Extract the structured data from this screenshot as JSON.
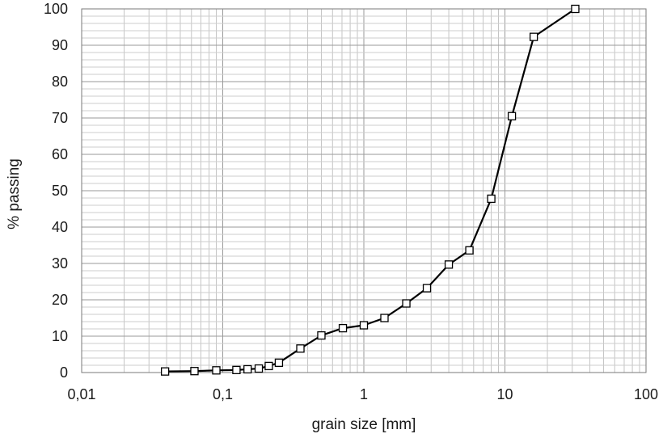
{
  "chart_data": {
    "type": "line",
    "title": "",
    "xlabel": "grain size [mm]",
    "ylabel": "% passing",
    "xscale": "log",
    "xlim": [
      0.01,
      100
    ],
    "ylim": [
      0,
      100
    ],
    "grid": true,
    "legend": "none",
    "x_tick_labels": [
      "0,01",
      "0,1",
      "1",
      "10",
      "100"
    ],
    "y_tick_labels": [
      "0",
      "10",
      "20",
      "30",
      "40",
      "50",
      "60",
      "70",
      "80",
      "90",
      "100"
    ],
    "series": [
      {
        "marker": "square",
        "color": "#000000",
        "x": [
          0.039,
          0.063,
          0.09,
          0.125,
          0.15,
          0.18,
          0.212,
          0.25,
          0.355,
          0.5,
          0.71,
          1.0,
          1.4,
          2.0,
          2.8,
          4.0,
          5.6,
          8.0,
          11.2,
          16.0,
          31.5
        ],
        "y": [
          0.3,
          0.4,
          0.6,
          0.7,
          0.9,
          1.1,
          1.8,
          2.7,
          6.6,
          10.2,
          12.2,
          13.0,
          15.0,
          19.0,
          23.2,
          29.7,
          33.6,
          47.8,
          70.5,
          92.3,
          100.0
        ]
      }
    ]
  }
}
